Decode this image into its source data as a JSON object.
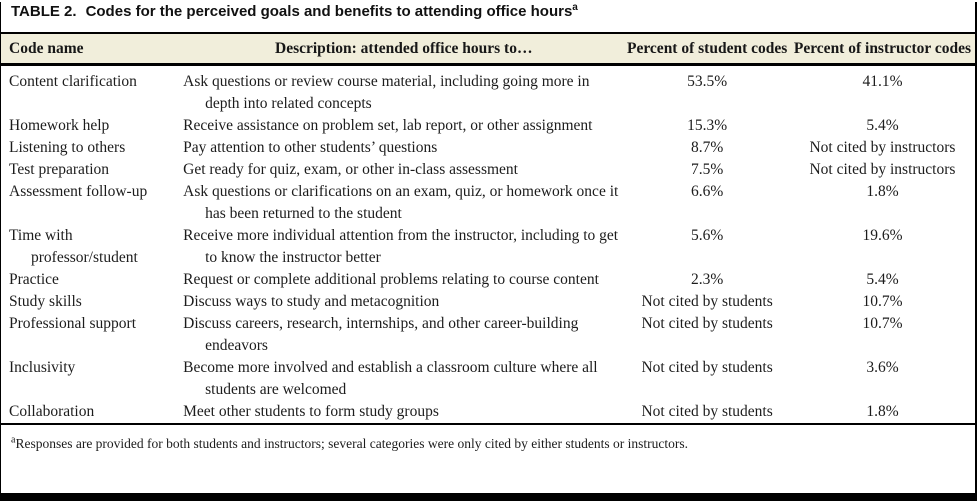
{
  "caption": {
    "label": "TABLE 2.",
    "text": "Codes for the perceived goals and benefits to attending office hours",
    "note_marker": "a"
  },
  "table": {
    "columns": [
      "Code name",
      "Description: attended office hours to…",
      "Percent of student codes",
      "Percent of instructor codes"
    ],
    "rows": [
      {
        "code": "Content clarification",
        "description": "Ask questions or review course material, including going more in depth into related concepts",
        "student_percent": "53.5%",
        "instructor_percent": "41.1%"
      },
      {
        "code": "Homework help",
        "description": "Receive assistance on problem set, lab report, or other assignment",
        "student_percent": "15.3%",
        "instructor_percent": "5.4%"
      },
      {
        "code": "Listening to others",
        "description": "Pay attention to other students’ questions",
        "student_percent": "8.7%",
        "instructor_percent": "Not cited by instructors"
      },
      {
        "code": "Test preparation",
        "description": "Get ready for quiz, exam, or other in-class assessment",
        "student_percent": "7.5%",
        "instructor_percent": "Not cited by instructors"
      },
      {
        "code": "Assessment follow-up",
        "description": "Ask questions or clarifications on an exam, quiz, or homework once it has been returned to the student",
        "student_percent": "6.6%",
        "instructor_percent": "1.8%"
      },
      {
        "code": "Time with professor/student",
        "description": "Receive more individual attention from the instructor, including to get to know the instructor better",
        "student_percent": "5.6%",
        "instructor_percent": "19.6%"
      },
      {
        "code": "Practice",
        "description": "Request or complete additional problems relating to course content",
        "student_percent": "2.3%",
        "instructor_percent": "5.4%"
      },
      {
        "code": "Study skills",
        "description": "Discuss ways to study and metacognition",
        "student_percent": "Not cited by students",
        "instructor_percent": "10.7%"
      },
      {
        "code": "Professional support",
        "description": "Discuss careers, research, internships, and other career-building endeavors",
        "student_percent": "Not cited by students",
        "instructor_percent": "10.7%"
      },
      {
        "code": "Inclusivity",
        "description": "Become more involved and establish a classroom culture where all students are welcomed",
        "student_percent": "Not cited by students",
        "instructor_percent": "3.6%"
      },
      {
        "code": "Collaboration",
        "description": "Meet other students to form study groups",
        "student_percent": "Not cited by students",
        "instructor_percent": "1.8%"
      }
    ]
  },
  "footnote": {
    "marker": "a",
    "text": "Responses are provided for both students and instructors; several categories were only cited by either students or instructors."
  },
  "colors": {
    "header_band": "#f1eedb",
    "rule": "#000000",
    "text": "#1c1c1c",
    "frame": "#000000"
  }
}
